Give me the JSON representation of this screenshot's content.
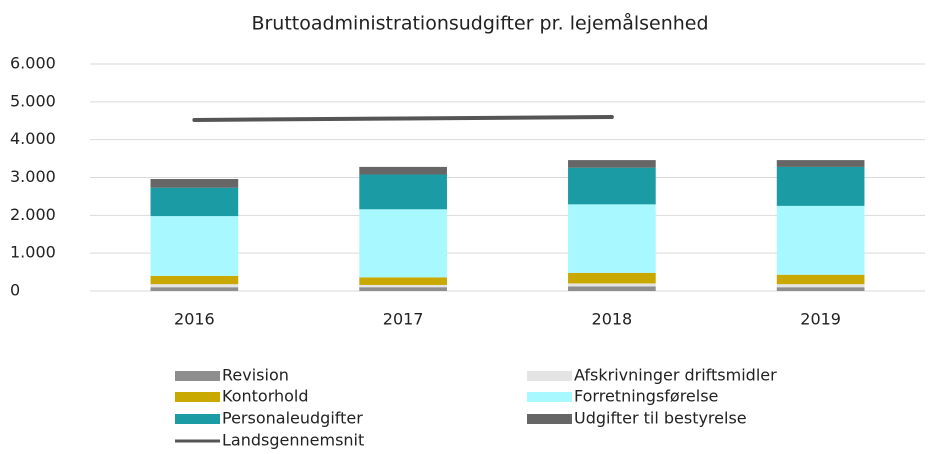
{
  "chart_data": {
    "type": "stacked_bar_line",
    "title": "Bruttoadministrationsudgifter pr. lejemålsenhed",
    "categories": [
      "2016",
      "2017",
      "2018",
      "2019"
    ],
    "series": [
      {
        "name": "Revision",
        "color": "#8e8e8e",
        "values": [
          100,
          100,
          120,
          100
        ]
      },
      {
        "name": "Afskrivninger driftsmidler",
        "color": "#e4e4e4",
        "values": [
          80,
          60,
          80,
          80
        ]
      },
      {
        "name": "Kontorhold",
        "color": "#c9a900",
        "values": [
          220,
          200,
          280,
          250
        ]
      },
      {
        "name": "Forretningsførelse",
        "color": "#a8f8ff",
        "values": [
          1580,
          1800,
          1810,
          1820
        ]
      },
      {
        "name": "Personaleudgifter",
        "color": "#1b9ca4",
        "values": [
          750,
          920,
          970,
          1030
        ]
      },
      {
        "name": "Udgifter til bestyrelse",
        "color": "#666666",
        "values": [
          230,
          200,
          200,
          180
        ]
      },
      {
        "name": "Landsgennemsnit",
        "color": "#555555",
        "kind": "line",
        "values": [
          4520,
          4560,
          4600,
          null
        ]
      }
    ],
    "ylim": [
      0,
      6000
    ],
    "yticks": [
      0,
      {
        "value": 1000,
        "label": "1.000"
      },
      {
        "value": 2000,
        "label": "2.000"
      },
      {
        "value": 3000,
        "label": "3.000"
      },
      {
        "value": 4000,
        "label": "4.000"
      },
      {
        "value": 5000,
        "label": "5.000"
      },
      {
        "value": 6000,
        "label": "6.000"
      }
    ],
    "grid": true
  }
}
